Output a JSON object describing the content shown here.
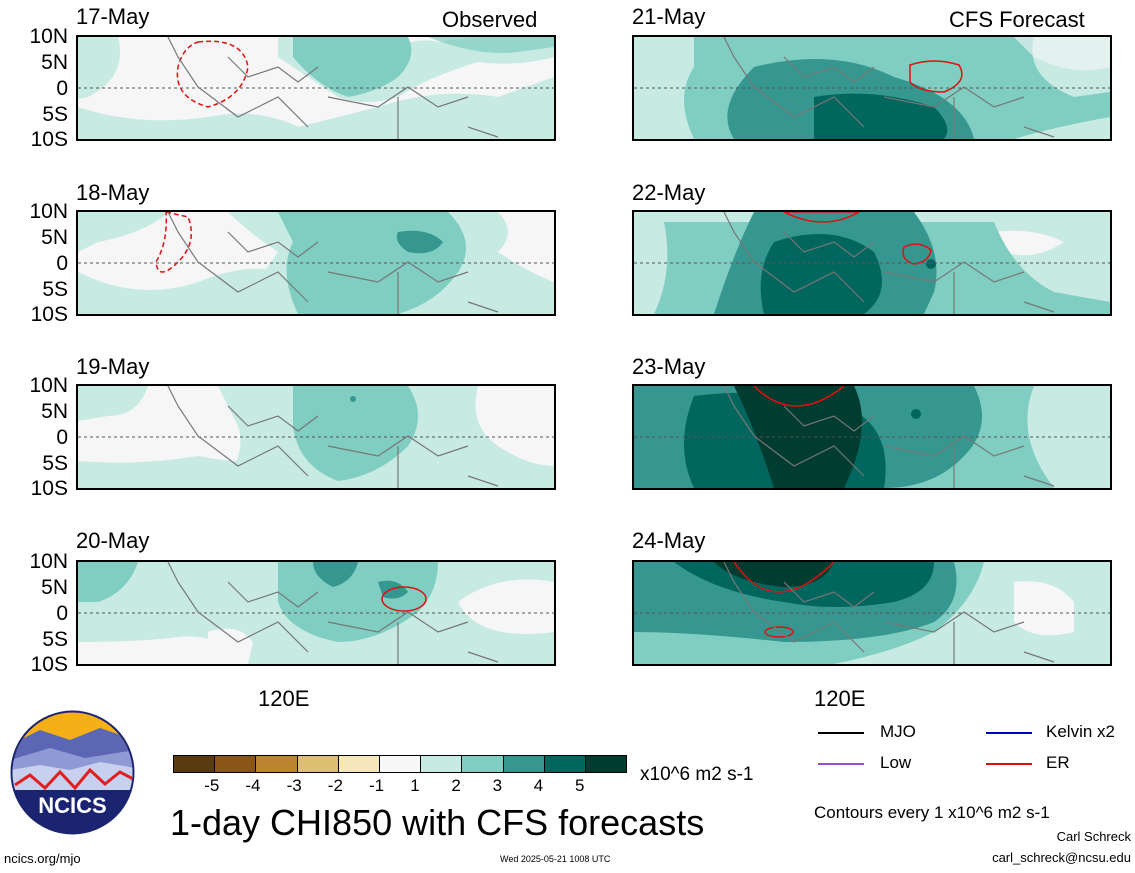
{
  "columns": {
    "left_header": "Observed",
    "right_header": "CFS Forecast"
  },
  "panels_left": [
    {
      "date": "17-May"
    },
    {
      "date": "18-May"
    },
    {
      "date": "19-May"
    },
    {
      "date": "20-May"
    }
  ],
  "panels_right": [
    {
      "date": "21-May"
    },
    {
      "date": "22-May"
    },
    {
      "date": "23-May"
    },
    {
      "date": "24-May"
    }
  ],
  "lat_labels": [
    "10N",
    "5N",
    "0",
    "5S",
    "10S"
  ],
  "lon_label": "120E",
  "colorbar": {
    "colors": [
      "#5a3a0f",
      "#8a5617",
      "#bd852f",
      "#dcbf73",
      "#f5e7b9",
      "#f7f7f7",
      "#c7eae3",
      "#80cdc1",
      "#35978f",
      "#01665e",
      "#003c30"
    ],
    "labels": [
      "-5",
      "-4",
      "-3",
      "-2",
      "-1",
      "1",
      "2",
      "3",
      "4",
      "5"
    ],
    "units": "x10^6 m2 s-1"
  },
  "legend": {
    "items": [
      {
        "label": "MJO",
        "color": "#000000"
      },
      {
        "label": "Kelvin x2",
        "color": "#0000cc"
      },
      {
        "label": "Low",
        "color": "#9b4dd1"
      },
      {
        "label": "ER",
        "color": "#e01010"
      }
    ],
    "contour_note": "Contours every 1 x10^6 m2 s-1"
  },
  "footer": {
    "title": "1-day CHI850 with CFS forecasts",
    "url": "ncics.org/mjo",
    "timestamp": "Wed 2025-05-21 1008 UTC",
    "author": "Carl Schreck",
    "email": "carl_schreck@ncsu.edu",
    "logo_text": "NCICS"
  }
}
